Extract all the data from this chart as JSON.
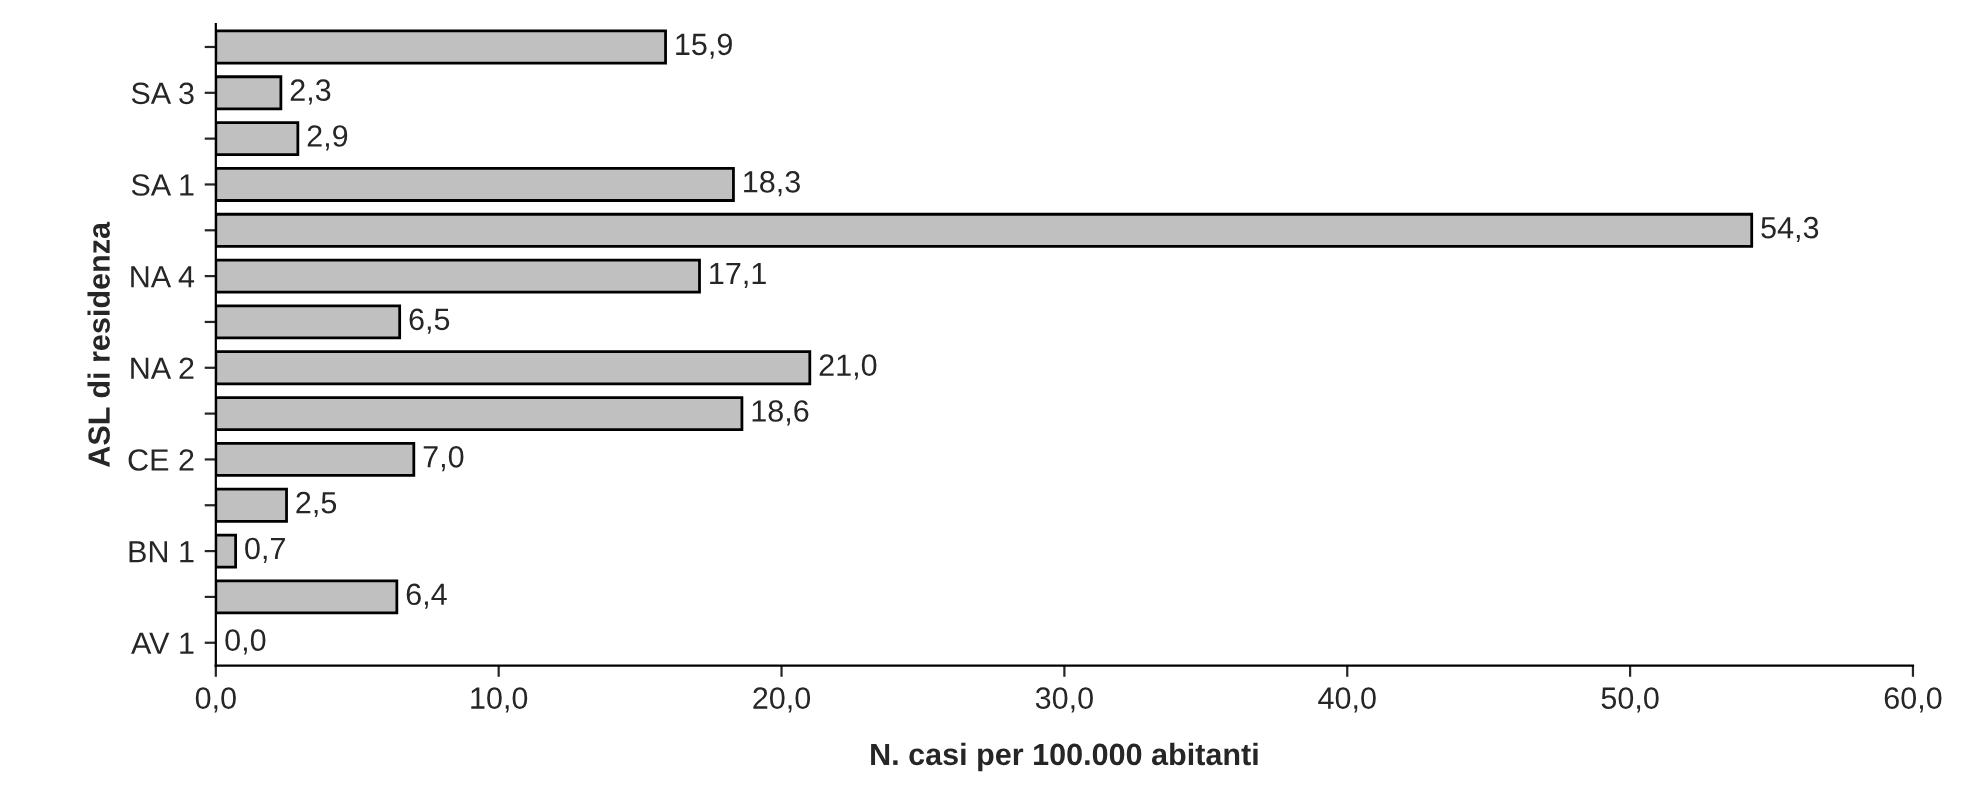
{
  "chart_data": {
    "type": "bar",
    "orientation": "horizontal",
    "categories": [
      null,
      "SA 3",
      null,
      "SA 1",
      null,
      "NA 4",
      null,
      "NA 2",
      null,
      "CE 2",
      null,
      "BN 1",
      null,
      "AV 1"
    ],
    "values": [
      15.9,
      2.3,
      2.9,
      18.3,
      54.3,
      17.1,
      6.5,
      21.0,
      18.6,
      7.0,
      2.5,
      0.7,
      6.4,
      0.0
    ],
    "value_labels": [
      "15,9",
      "2,3",
      "2,9",
      "18,3",
      "54,3",
      "17,1",
      "6,5",
      "21,0",
      "18,6",
      "7,0",
      "2,5",
      "0,7",
      "6,4",
      "0,0"
    ],
    "color": "#c0c0c0",
    "xlim": [
      0,
      60
    ],
    "xticks": [
      {
        "value": 0,
        "label": "0,0"
      },
      {
        "value": 10,
        "label": "10,0"
      },
      {
        "value": 20,
        "label": "20,0"
      },
      {
        "value": 30,
        "label": "30,0"
      },
      {
        "value": 40,
        "label": "40,0"
      },
      {
        "value": 50,
        "label": "50,0"
      },
      {
        "value": 60,
        "label": "60,0"
      }
    ],
    "xlabel": "N. casi per 100.000 abitanti",
    "ylabel": "ASL di residenza",
    "grid": false,
    "legend": false
  }
}
